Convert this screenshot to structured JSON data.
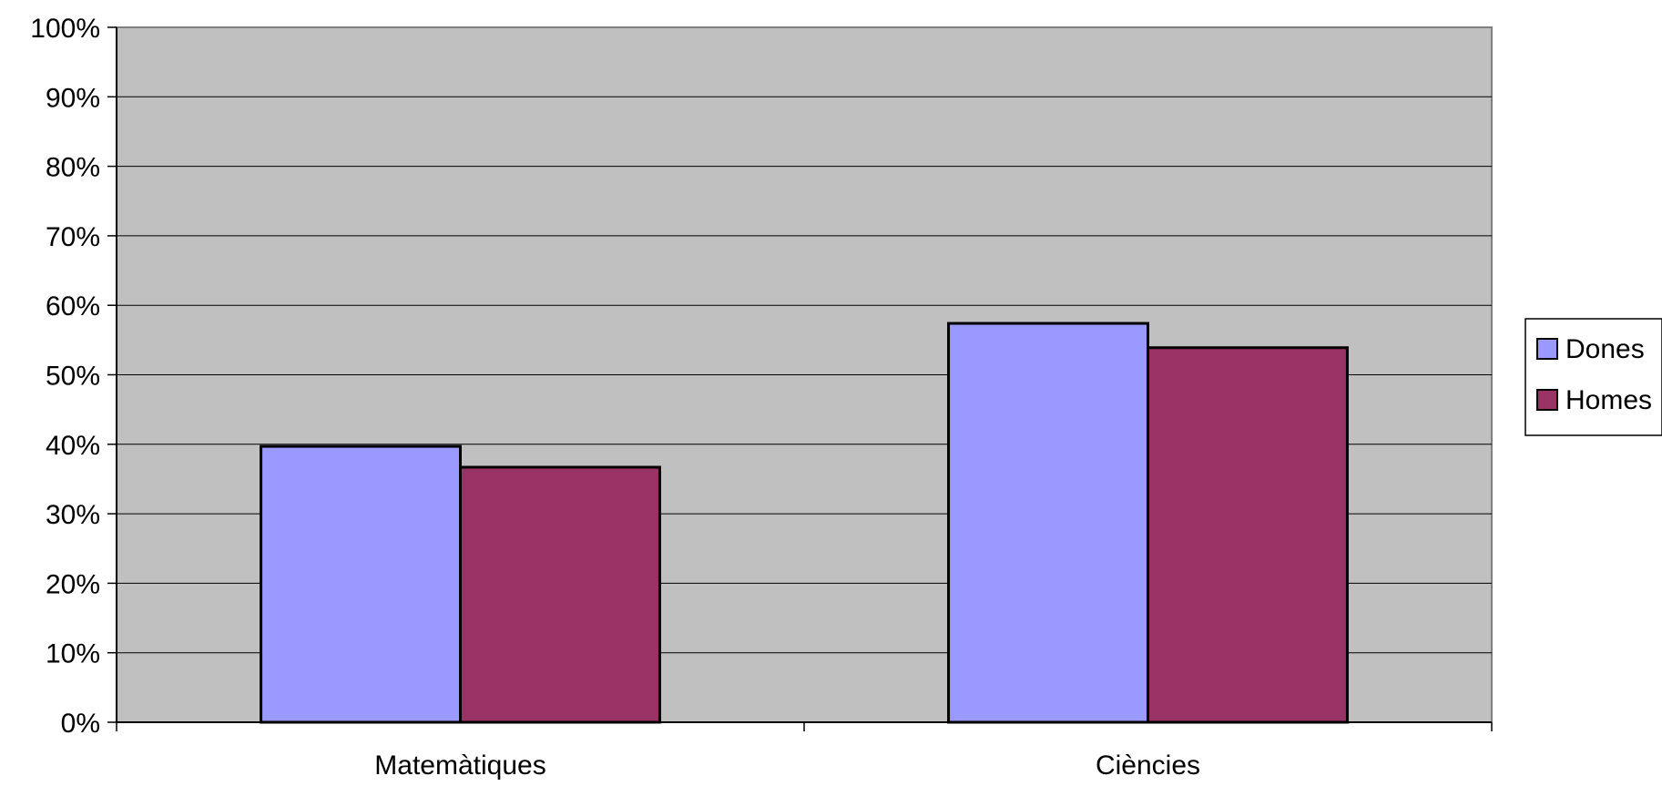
{
  "chart_data": {
    "type": "bar",
    "categories": [
      "Matemàtiques",
      "Ciències"
    ],
    "series": [
      {
        "name": "Dones",
        "values": [
          39.7,
          57.4
        ],
        "color": "#9999ff"
      },
      {
        "name": "Homes",
        "values": [
          36.7,
          53.9
        ],
        "color": "#993366"
      }
    ],
    "ylim": [
      0,
      100
    ],
    "yticks": [
      "0%",
      "10%",
      "20%",
      "30%",
      "40%",
      "50%",
      "60%",
      "70%",
      "80%",
      "90%",
      "100%"
    ],
    "yunit": "%",
    "grid": true,
    "legend_position": "right",
    "plot_background": "#c0c0c0"
  }
}
